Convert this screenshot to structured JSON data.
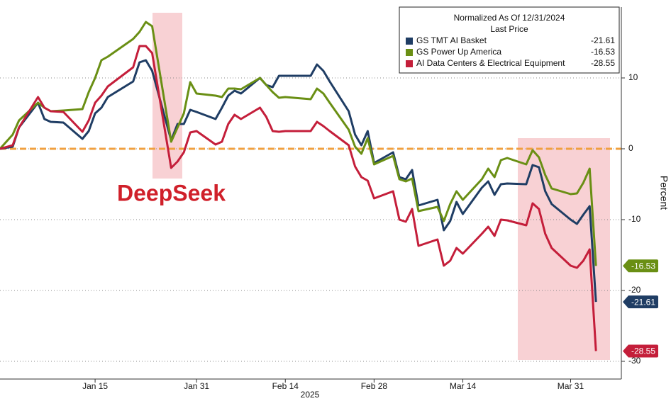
{
  "chart_data": {
    "type": "line",
    "legend_title": "Normalized As Of 12/31/2024",
    "legend_subtitle": "Last Price",
    "annotation": "DeepSeek",
    "y_label": "Percent",
    "x_label": "2025",
    "x": [
      "2024-12-31",
      "2025-01-02",
      "2025-01-03",
      "2025-01-06",
      "2025-01-07",
      "2025-01-08",
      "2025-01-10",
      "2025-01-13",
      "2025-01-14",
      "2025-01-15",
      "2025-01-16",
      "2025-01-17",
      "2025-01-21",
      "2025-01-22",
      "2025-01-23",
      "2025-01-24",
      "2025-01-27",
      "2025-01-28",
      "2025-01-29",
      "2025-01-30",
      "2025-01-31",
      "2025-02-03",
      "2025-02-04",
      "2025-02-05",
      "2025-02-06",
      "2025-02-07",
      "2025-02-10",
      "2025-02-11",
      "2025-02-12",
      "2025-02-13",
      "2025-02-14",
      "2025-02-18",
      "2025-02-19",
      "2025-02-20",
      "2025-02-21",
      "2025-02-24",
      "2025-02-25",
      "2025-02-26",
      "2025-02-27",
      "2025-02-28",
      "2025-03-03",
      "2025-03-04",
      "2025-03-05",
      "2025-03-06",
      "2025-03-07",
      "2025-03-10",
      "2025-03-11",
      "2025-03-12",
      "2025-03-13",
      "2025-03-14",
      "2025-03-17",
      "2025-03-18",
      "2025-03-19",
      "2025-03-20",
      "2025-03-21",
      "2025-03-24",
      "2025-03-25",
      "2025-03-26",
      "2025-03-27",
      "2025-03-28",
      "2025-03-31",
      "2025-04-01",
      "2025-04-02",
      "2025-04-03",
      "2025-04-04"
    ],
    "series": [
      {
        "name": "GS TMT AI Basket",
        "color": "#1f3d64",
        "values": [
          0,
          0.3,
          3,
          6.5,
          4.2,
          3.8,
          3.7,
          1.4,
          2.5,
          5,
          5.8,
          7.3,
          9.5,
          12.2,
          12.5,
          11,
          1.2,
          3.5,
          3.5,
          5.5,
          5.2,
          4.2,
          5.8,
          7.5,
          8.2,
          7.8,
          10,
          9,
          8.7,
          10.3,
          10.3,
          10.3,
          11.9,
          11,
          9.5,
          5.3,
          2,
          0.5,
          2.5,
          -2,
          -0.5,
          -4,
          -4.3,
          -3,
          -8,
          -7.2,
          -11.5,
          -10.2,
          -7.5,
          -9.2,
          -5.5,
          -4.6,
          -6.5,
          -5,
          -4.9,
          -5,
          -2.3,
          -2.6,
          -6,
          -7.8,
          -10,
          -10.6,
          -9.3,
          -8.1,
          -21.61
        ]
      },
      {
        "name": "GS Power Up America",
        "color": "#6a8f14",
        "values": [
          0,
          2,
          4,
          6.5,
          5.8,
          5.3,
          5.4,
          5.6,
          8,
          10,
          12.5,
          13,
          15.5,
          16.5,
          17.9,
          17.3,
          1,
          3,
          5,
          9.4,
          7.8,
          7.5,
          7.3,
          8.5,
          8.5,
          8.4,
          10,
          9,
          8,
          7.2,
          7.3,
          7,
          8.5,
          7.8,
          6.5,
          2.7,
          0.3,
          -0.7,
          1.5,
          -2.2,
          -1,
          -4.3,
          -4.6,
          -4.2,
          -8.8,
          -8.2,
          -10.2,
          -7.8,
          -6,
          -7.2,
          -4.3,
          -2.8,
          -4,
          -1.6,
          -1.3,
          -2.2,
          -0.2,
          -1.2,
          -3.7,
          -5.6,
          -6.4,
          -6.3,
          -4.8,
          -2.8,
          -16.53
        ]
      },
      {
        "name": "AI Data Centers & Electrical Equipment",
        "color": "#c41e3a",
        "values": [
          0,
          0.5,
          3,
          7.3,
          5.8,
          5.3,
          5.2,
          2.4,
          4,
          6.5,
          7.5,
          8.8,
          11.5,
          14.5,
          14.5,
          13.5,
          -2.7,
          -1.8,
          -0.5,
          2.3,
          2.5,
          0.6,
          1,
          3.5,
          4.8,
          4.2,
          5.8,
          4.5,
          2.5,
          2.4,
          2.5,
          2.5,
          3.8,
          3.2,
          2.5,
          0.5,
          -2.5,
          -4,
          -4.5,
          -7,
          -6,
          -10,
          -10.3,
          -8.5,
          -13.7,
          -12.8,
          -16.5,
          -15.8,
          -14,
          -14.8,
          -12,
          -11,
          -12.3,
          -10,
          -10.1,
          -10.8,
          -7.7,
          -8.5,
          -12,
          -14,
          -16.5,
          -16.8,
          -15.8,
          -14.2,
          -28.55
        ]
      }
    ],
    "reference_line": {
      "value": 0,
      "color": "#f0a040"
    },
    "xlim": [
      "2024-12-31",
      "2025-04-08"
    ],
    "xticks": [
      {
        "value": "2025-01-15",
        "label": "Jan 15"
      },
      {
        "value": "2025-01-31",
        "label": "Jan 31"
      },
      {
        "value": "2025-02-14",
        "label": "Feb 14"
      },
      {
        "value": "2025-02-28",
        "label": "Feb 28"
      },
      {
        "value": "2025-03-14",
        "label": "Mar 14"
      },
      {
        "value": "2025-03-31",
        "label": "Mar 31"
      }
    ],
    "ylim": [
      -32.5,
      20
    ],
    "yticks": [
      10,
      0,
      -10,
      -20,
      -30
    ],
    "grid": true
  }
}
